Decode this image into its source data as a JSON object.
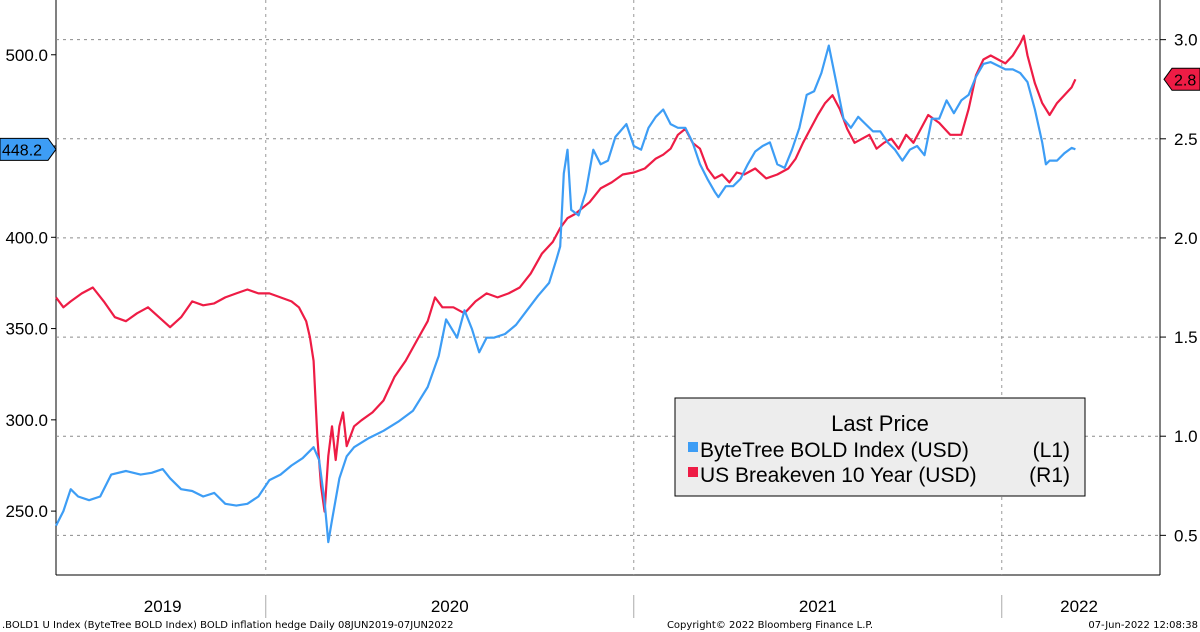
{
  "chart_data": {
    "type": "line",
    "title": "",
    "legend": {
      "title": "Last Price",
      "placement": "bottom-right",
      "entries": [
        {
          "label": "ByteTree BOLD Index (USD)",
          "axis": "(L1)",
          "color": "#3d9df5"
        },
        {
          "label": "US Breakeven 10 Year (USD)",
          "axis": "(R1)",
          "color": "#ee1c45"
        }
      ]
    },
    "x_range": [
      2019.43,
      2022.43
    ],
    "x_year_labels": [
      {
        "label": "2019",
        "pos": 2019.72
      },
      {
        "label": "2020",
        "pos": 2020.5
      },
      {
        "label": "2021",
        "pos": 2021.5
      },
      {
        "label": "2022",
        "pos": 2022.21
      }
    ],
    "x_year_bounds": [
      2020.0,
      2021.0,
      2022.0
    ],
    "left_axis": {
      "range": [
        215,
        530
      ],
      "ticks": [
        250,
        300,
        350,
        400,
        450,
        500
      ],
      "labels": [
        "250.0",
        "300.0",
        "350.0",
        "400.0",
        "",
        "500.0"
      ]
    },
    "right_axis": {
      "range": [
        0.3,
        3.2
      ],
      "ticks": [
        0.5,
        1.0,
        1.5,
        2.0,
        2.5,
        3.0
      ],
      "labels": [
        "0.5",
        "1.0",
        "1.5",
        "2.0",
        "2.5",
        "3.0"
      ]
    },
    "last_value_tags": {
      "left": {
        "text": "448.2",
        "value": 448.2,
        "color": "#3d9df5"
      },
      "right": {
        "text": "2.8",
        "value": 2.8,
        "color": "#ee1c45"
      }
    },
    "series": [
      {
        "name": "ByteTree BOLD Index (USD)",
        "axis": "left",
        "color": "#3d9df5",
        "points": [
          [
            2019.43,
            242
          ],
          [
            2019.45,
            250
          ],
          [
            2019.47,
            262
          ],
          [
            2019.49,
            258
          ],
          [
            2019.52,
            256
          ],
          [
            2019.55,
            258
          ],
          [
            2019.58,
            270
          ],
          [
            2019.62,
            272
          ],
          [
            2019.66,
            270
          ],
          [
            2019.69,
            271
          ],
          [
            2019.72,
            273
          ],
          [
            2019.74,
            268
          ],
          [
            2019.77,
            262
          ],
          [
            2019.8,
            261
          ],
          [
            2019.83,
            258
          ],
          [
            2019.86,
            260
          ],
          [
            2019.89,
            254
          ],
          [
            2019.92,
            253
          ],
          [
            2019.95,
            254
          ],
          [
            2019.98,
            258
          ],
          [
            2020.01,
            267
          ],
          [
            2020.04,
            270
          ],
          [
            2020.07,
            275
          ],
          [
            2020.1,
            279
          ],
          [
            2020.13,
            285
          ],
          [
            2020.145,
            278
          ],
          [
            2020.16,
            255
          ],
          [
            2020.17,
            233
          ],
          [
            2020.18,
            245
          ],
          [
            2020.2,
            268
          ],
          [
            2020.22,
            280
          ],
          [
            2020.24,
            285
          ],
          [
            2020.28,
            290
          ],
          [
            2020.32,
            294
          ],
          [
            2020.36,
            299
          ],
          [
            2020.4,
            305
          ],
          [
            2020.44,
            318
          ],
          [
            2020.47,
            335
          ],
          [
            2020.49,
            355
          ],
          [
            2020.52,
            345
          ],
          [
            2020.54,
            360
          ],
          [
            2020.56,
            350
          ],
          [
            2020.58,
            337
          ],
          [
            2020.6,
            345
          ],
          [
            2020.62,
            345
          ],
          [
            2020.65,
            347
          ],
          [
            2020.68,
            352
          ],
          [
            2020.71,
            360
          ],
          [
            2020.74,
            368
          ],
          [
            2020.77,
            375
          ],
          [
            2020.79,
            388
          ],
          [
            2020.8,
            395
          ],
          [
            2020.81,
            435
          ],
          [
            2020.82,
            448
          ],
          [
            2020.83,
            415
          ],
          [
            2020.85,
            412
          ],
          [
            2020.87,
            425
          ],
          [
            2020.89,
            448
          ],
          [
            2020.91,
            440
          ],
          [
            2020.93,
            442
          ],
          [
            2020.95,
            455
          ],
          [
            2020.98,
            462
          ],
          [
            2021.0,
            450
          ],
          [
            2021.02,
            448
          ],
          [
            2021.04,
            460
          ],
          [
            2021.06,
            466
          ],
          [
            2021.08,
            470
          ],
          [
            2021.1,
            462
          ],
          [
            2021.12,
            460
          ],
          [
            2021.14,
            460
          ],
          [
            2021.16,
            452
          ],
          [
            2021.18,
            440
          ],
          [
            2021.2,
            432
          ],
          [
            2021.22,
            425
          ],
          [
            2021.23,
            422
          ],
          [
            2021.25,
            428
          ],
          [
            2021.27,
            428
          ],
          [
            2021.29,
            432
          ],
          [
            2021.31,
            440
          ],
          [
            2021.33,
            447
          ],
          [
            2021.35,
            450
          ],
          [
            2021.37,
            452
          ],
          [
            2021.39,
            440
          ],
          [
            2021.41,
            438
          ],
          [
            2021.43,
            448
          ],
          [
            2021.45,
            460
          ],
          [
            2021.47,
            478
          ],
          [
            2021.49,
            480
          ],
          [
            2021.51,
            490
          ],
          [
            2021.53,
            505
          ],
          [
            2021.55,
            485
          ],
          [
            2021.57,
            465
          ],
          [
            2021.59,
            460
          ],
          [
            2021.61,
            466
          ],
          [
            2021.63,
            462
          ],
          [
            2021.65,
            458
          ],
          [
            2021.67,
            458
          ],
          [
            2021.69,
            452
          ],
          [
            2021.71,
            448
          ],
          [
            2021.73,
            442
          ],
          [
            2021.75,
            448
          ],
          [
            2021.77,
            450
          ],
          [
            2021.79,
            445
          ],
          [
            2021.81,
            465
          ],
          [
            2021.83,
            465
          ],
          [
            2021.85,
            475
          ],
          [
            2021.87,
            468
          ],
          [
            2021.89,
            475
          ],
          [
            2021.91,
            478
          ],
          [
            2021.93,
            488
          ],
          [
            2021.95,
            495
          ],
          [
            2021.97,
            496
          ],
          [
            2021.99,
            494
          ],
          [
            2022.01,
            492
          ],
          [
            2022.03,
            492
          ],
          [
            2022.05,
            490
          ],
          [
            2022.07,
            485
          ],
          [
            2022.09,
            470
          ],
          [
            2022.11,
            452
          ],
          [
            2022.12,
            440
          ],
          [
            2022.13,
            442
          ],
          [
            2022.15,
            442
          ],
          [
            2022.17,
            446
          ],
          [
            2022.19,
            449
          ],
          [
            2022.2,
            448.2
          ]
        ]
      },
      {
        "name": "US Breakeven 10 Year (USD)",
        "axis": "right",
        "color": "#ee1c45",
        "points": [
          [
            2019.43,
            1.7
          ],
          [
            2019.45,
            1.65
          ],
          [
            2019.47,
            1.68
          ],
          [
            2019.5,
            1.72
          ],
          [
            2019.53,
            1.75
          ],
          [
            2019.56,
            1.68
          ],
          [
            2019.59,
            1.6
          ],
          [
            2019.62,
            1.58
          ],
          [
            2019.65,
            1.62
          ],
          [
            2019.68,
            1.65
          ],
          [
            2019.71,
            1.6
          ],
          [
            2019.74,
            1.55
          ],
          [
            2019.77,
            1.6
          ],
          [
            2019.8,
            1.68
          ],
          [
            2019.83,
            1.66
          ],
          [
            2019.86,
            1.67
          ],
          [
            2019.89,
            1.7
          ],
          [
            2019.92,
            1.72
          ],
          [
            2019.95,
            1.74
          ],
          [
            2019.98,
            1.72
          ],
          [
            2020.01,
            1.72
          ],
          [
            2020.04,
            1.7
          ],
          [
            2020.07,
            1.68
          ],
          [
            2020.09,
            1.65
          ],
          [
            2020.11,
            1.58
          ],
          [
            2020.12,
            1.5
          ],
          [
            2020.13,
            1.38
          ],
          [
            2020.14,
            1.0
          ],
          [
            2020.15,
            0.75
          ],
          [
            2020.16,
            0.62
          ],
          [
            2020.17,
            0.9
          ],
          [
            2020.18,
            1.05
          ],
          [
            2020.19,
            0.88
          ],
          [
            2020.2,
            1.05
          ],
          [
            2020.21,
            1.12
          ],
          [
            2020.22,
            0.95
          ],
          [
            2020.24,
            1.05
          ],
          [
            2020.26,
            1.08
          ],
          [
            2020.29,
            1.12
          ],
          [
            2020.32,
            1.18
          ],
          [
            2020.35,
            1.3
          ],
          [
            2020.38,
            1.38
          ],
          [
            2020.41,
            1.48
          ],
          [
            2020.44,
            1.58
          ],
          [
            2020.46,
            1.7
          ],
          [
            2020.48,
            1.65
          ],
          [
            2020.51,
            1.65
          ],
          [
            2020.54,
            1.62
          ],
          [
            2020.57,
            1.68
          ],
          [
            2020.6,
            1.72
          ],
          [
            2020.63,
            1.7
          ],
          [
            2020.66,
            1.72
          ],
          [
            2020.69,
            1.75
          ],
          [
            2020.72,
            1.82
          ],
          [
            2020.75,
            1.92
          ],
          [
            2020.78,
            1.98
          ],
          [
            2020.8,
            2.05
          ],
          [
            2020.82,
            2.1
          ],
          [
            2020.84,
            2.12
          ],
          [
            2020.86,
            2.15
          ],
          [
            2020.88,
            2.18
          ],
          [
            2020.91,
            2.25
          ],
          [
            2020.94,
            2.28
          ],
          [
            2020.97,
            2.32
          ],
          [
            2021.0,
            2.33
          ],
          [
            2021.03,
            2.35
          ],
          [
            2021.06,
            2.4
          ],
          [
            2021.08,
            2.42
          ],
          [
            2021.1,
            2.45
          ],
          [
            2021.12,
            2.52
          ],
          [
            2021.14,
            2.55
          ],
          [
            2021.16,
            2.48
          ],
          [
            2021.18,
            2.45
          ],
          [
            2021.2,
            2.35
          ],
          [
            2021.22,
            2.3
          ],
          [
            2021.24,
            2.32
          ],
          [
            2021.26,
            2.28
          ],
          [
            2021.28,
            2.33
          ],
          [
            2021.3,
            2.32
          ],
          [
            2021.33,
            2.35
          ],
          [
            2021.36,
            2.3
          ],
          [
            2021.39,
            2.32
          ],
          [
            2021.42,
            2.35
          ],
          [
            2021.44,
            2.4
          ],
          [
            2021.46,
            2.48
          ],
          [
            2021.48,
            2.55
          ],
          [
            2021.5,
            2.62
          ],
          [
            2021.52,
            2.68
          ],
          [
            2021.54,
            2.72
          ],
          [
            2021.56,
            2.65
          ],
          [
            2021.58,
            2.55
          ],
          [
            2021.6,
            2.48
          ],
          [
            2021.62,
            2.5
          ],
          [
            2021.64,
            2.52
          ],
          [
            2021.66,
            2.45
          ],
          [
            2021.68,
            2.48
          ],
          [
            2021.7,
            2.5
          ],
          [
            2021.72,
            2.45
          ],
          [
            2021.74,
            2.52
          ],
          [
            2021.76,
            2.48
          ],
          [
            2021.78,
            2.55
          ],
          [
            2021.8,
            2.62
          ],
          [
            2021.83,
            2.58
          ],
          [
            2021.86,
            2.52
          ],
          [
            2021.89,
            2.52
          ],
          [
            2021.91,
            2.65
          ],
          [
            2021.93,
            2.82
          ],
          [
            2021.95,
            2.9
          ],
          [
            2021.97,
            2.92
          ],
          [
            2021.99,
            2.9
          ],
          [
            2022.01,
            2.88
          ],
          [
            2022.03,
            2.92
          ],
          [
            2022.05,
            2.98
          ],
          [
            2022.06,
            3.02
          ],
          [
            2022.07,
            2.92
          ],
          [
            2022.09,
            2.78
          ],
          [
            2022.11,
            2.68
          ],
          [
            2022.13,
            2.62
          ],
          [
            2022.15,
            2.68
          ],
          [
            2022.17,
            2.72
          ],
          [
            2022.19,
            2.76
          ],
          [
            2022.2,
            2.8
          ]
        ]
      }
    ]
  },
  "footer": {
    "left": ".BOLD1 U Index (ByteTree BOLD Index) BOLD inflation hedge  Daily 08JUN2019-07JUN2022",
    "center": "Copyright© 2022 Bloomberg Finance L.P.",
    "right": "07-Jun-2022 12:08:38"
  }
}
